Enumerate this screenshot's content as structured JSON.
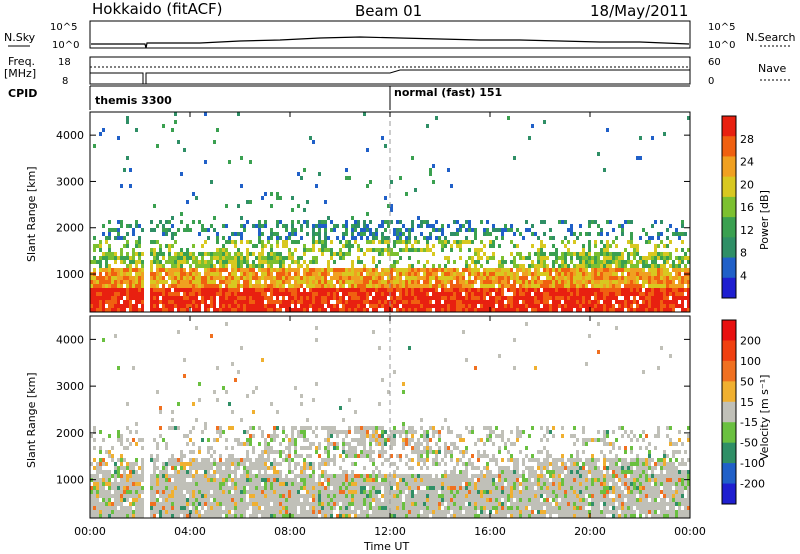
{
  "header": {
    "station": "Hokkaido (fitACF)",
    "beam": "Beam 01",
    "date": "18/May/2011"
  },
  "strip": {
    "nsky_label": "N.Sky",
    "nsearch_label": "N.Search",
    "nsky_ticks": [
      "10^5",
      "10^0"
    ],
    "nsky_right_ticks": [
      "10^5",
      "10^0"
    ],
    "freq_label": "Freq.",
    "freq_unit": "[MHz]",
    "freq_ticks": [
      "18",
      "8"
    ],
    "nave_label": "Nave",
    "nave_ticks": [
      "60",
      "0"
    ],
    "cpid_label": "CPID",
    "cpid_entries": [
      "themis 3300",
      "normal (fast) 151"
    ]
  },
  "colors": {
    "power": [
      "#1f1fd0",
      "#2060c8",
      "#2f8f66",
      "#3aa050",
      "#7cc030",
      "#d8c820",
      "#f0a020",
      "#f06010",
      "#e82010"
    ],
    "velocity": [
      "#1f1fd0",
      "#2060c8",
      "#2f8f66",
      "#6ac040",
      "#c0c0b8",
      "#f0b030",
      "#f07020",
      "#f04010",
      "#e81010"
    ]
  },
  "chart_data": [
    {
      "type": "heatmap",
      "title": "",
      "xlabel": "Time UT",
      "ylabel": "Slant Range [km]",
      "xlim": [
        0,
        24
      ],
      "ylim": [
        180,
        4500
      ],
      "x_ticks": [
        "00:00",
        "04:00",
        "08:00",
        "12:00",
        "16:00",
        "20:00",
        "00:00"
      ],
      "y_ticks": [
        "1000",
        "2000",
        "3000",
        "4000"
      ],
      "y_tick_values": [
        1000,
        2000,
        3000,
        4000
      ],
      "colorbar_label": "Power [dB]",
      "colorbar_ticks": [
        "28",
        "24",
        "20",
        "16",
        "12",
        "8",
        "4"
      ],
      "colorbar_values": [
        28,
        24,
        20,
        16,
        12,
        8,
        4
      ]
    },
    {
      "type": "heatmap",
      "title": "",
      "xlabel": "Time UT",
      "ylabel": "Slant Range [km]",
      "xlim": [
        0,
        24
      ],
      "ylim": [
        180,
        4500
      ],
      "x_ticks": [
        "00:00",
        "04:00",
        "08:00",
        "12:00",
        "16:00",
        "20:00",
        "00:00"
      ],
      "y_ticks": [
        "1000",
        "2000",
        "3000",
        "4000"
      ],
      "y_tick_values": [
        1000,
        2000,
        3000,
        4000
      ],
      "colorbar_label": "Velocity [m s⁻¹]",
      "colorbar_ticks": [
        "200",
        "100",
        "50",
        "15",
        "-15",
        "-50",
        "-100",
        "-200"
      ],
      "colorbar_values": [
        200,
        100,
        50,
        15,
        -15,
        -50,
        -100,
        -200
      ]
    }
  ]
}
